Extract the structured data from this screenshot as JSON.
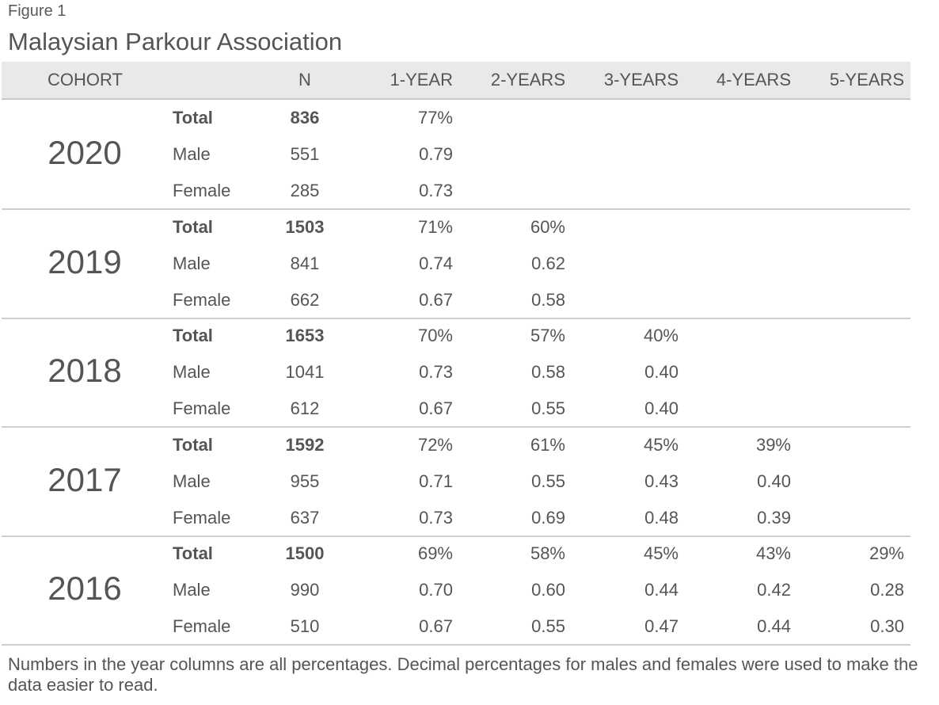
{
  "figure_label": "Figure 1",
  "title": "Malaysian Parkour Association",
  "headers": {
    "cohort": "COHORT",
    "n": "N",
    "y1": "1-YEAR",
    "y2": "2-YEARS",
    "y3": "3-YEARS",
    "y4": "4-YEARS",
    "y5": "5-YEARS"
  },
  "cohorts": [
    {
      "year": "2020",
      "rows": [
        {
          "label": "Total",
          "n": "836",
          "y1": "77%",
          "y2": "",
          "y3": "",
          "y4": "",
          "y5": ""
        },
        {
          "label": "Male",
          "n": "551",
          "y1": "0.79",
          "y2": "",
          "y3": "",
          "y4": "",
          "y5": ""
        },
        {
          "label": "Female",
          "n": "285",
          "y1": "0.73",
          "y2": "",
          "y3": "",
          "y4": "",
          "y5": ""
        }
      ]
    },
    {
      "year": "2019",
      "rows": [
        {
          "label": "Total",
          "n": "1503",
          "y1": "71%",
          "y2": "60%",
          "y3": "",
          "y4": "",
          "y5": ""
        },
        {
          "label": "Male",
          "n": "841",
          "y1": "0.74",
          "y2": "0.62",
          "y3": "",
          "y4": "",
          "y5": ""
        },
        {
          "label": "Female",
          "n": "662",
          "y1": "0.67",
          "y2": "0.58",
          "y3": "",
          "y4": "",
          "y5": ""
        }
      ]
    },
    {
      "year": "2018",
      "rows": [
        {
          "label": "Total",
          "n": "1653",
          "y1": "70%",
          "y2": "57%",
          "y3": "40%",
          "y4": "",
          "y5": ""
        },
        {
          "label": "Male",
          "n": "1041",
          "y1": "0.73",
          "y2": "0.58",
          "y3": "0.40",
          "y4": "",
          "y5": ""
        },
        {
          "label": "Female",
          "n": "612",
          "y1": "0.67",
          "y2": "0.55",
          "y3": "0.40",
          "y4": "",
          "y5": ""
        }
      ]
    },
    {
      "year": "2017",
      "rows": [
        {
          "label": "Total",
          "n": "1592",
          "y1": "72%",
          "y2": "61%",
          "y3": "45%",
          "y4": "39%",
          "y5": ""
        },
        {
          "label": "Male",
          "n": "955",
          "y1": "0.71",
          "y2": "0.55",
          "y3": "0.43",
          "y4": "0.40",
          "y5": ""
        },
        {
          "label": "Female",
          "n": "637",
          "y1": "0.73",
          "y2": "0.69",
          "y3": "0.48",
          "y4": "0.39",
          "y5": ""
        }
      ]
    },
    {
      "year": "2016",
      "rows": [
        {
          "label": "Total",
          "n": "1500",
          "y1": "69%",
          "y2": "58%",
          "y3": "45%",
          "y4": "43%",
          "y5": "29%"
        },
        {
          "label": "Male",
          "n": "990",
          "y1": "0.70",
          "y2": "0.60",
          "y3": "0.44",
          "y4": "0.42",
          "y5": "0.28"
        },
        {
          "label": "Female",
          "n": "510",
          "y1": "0.67",
          "y2": "0.55",
          "y3": "0.47",
          "y4": "0.44",
          "y5": "0.30"
        }
      ]
    }
  ],
  "footnote": "Numbers in the year columns are all percentages. Decimal percentages for males and females were used to make the data easier to read."
}
